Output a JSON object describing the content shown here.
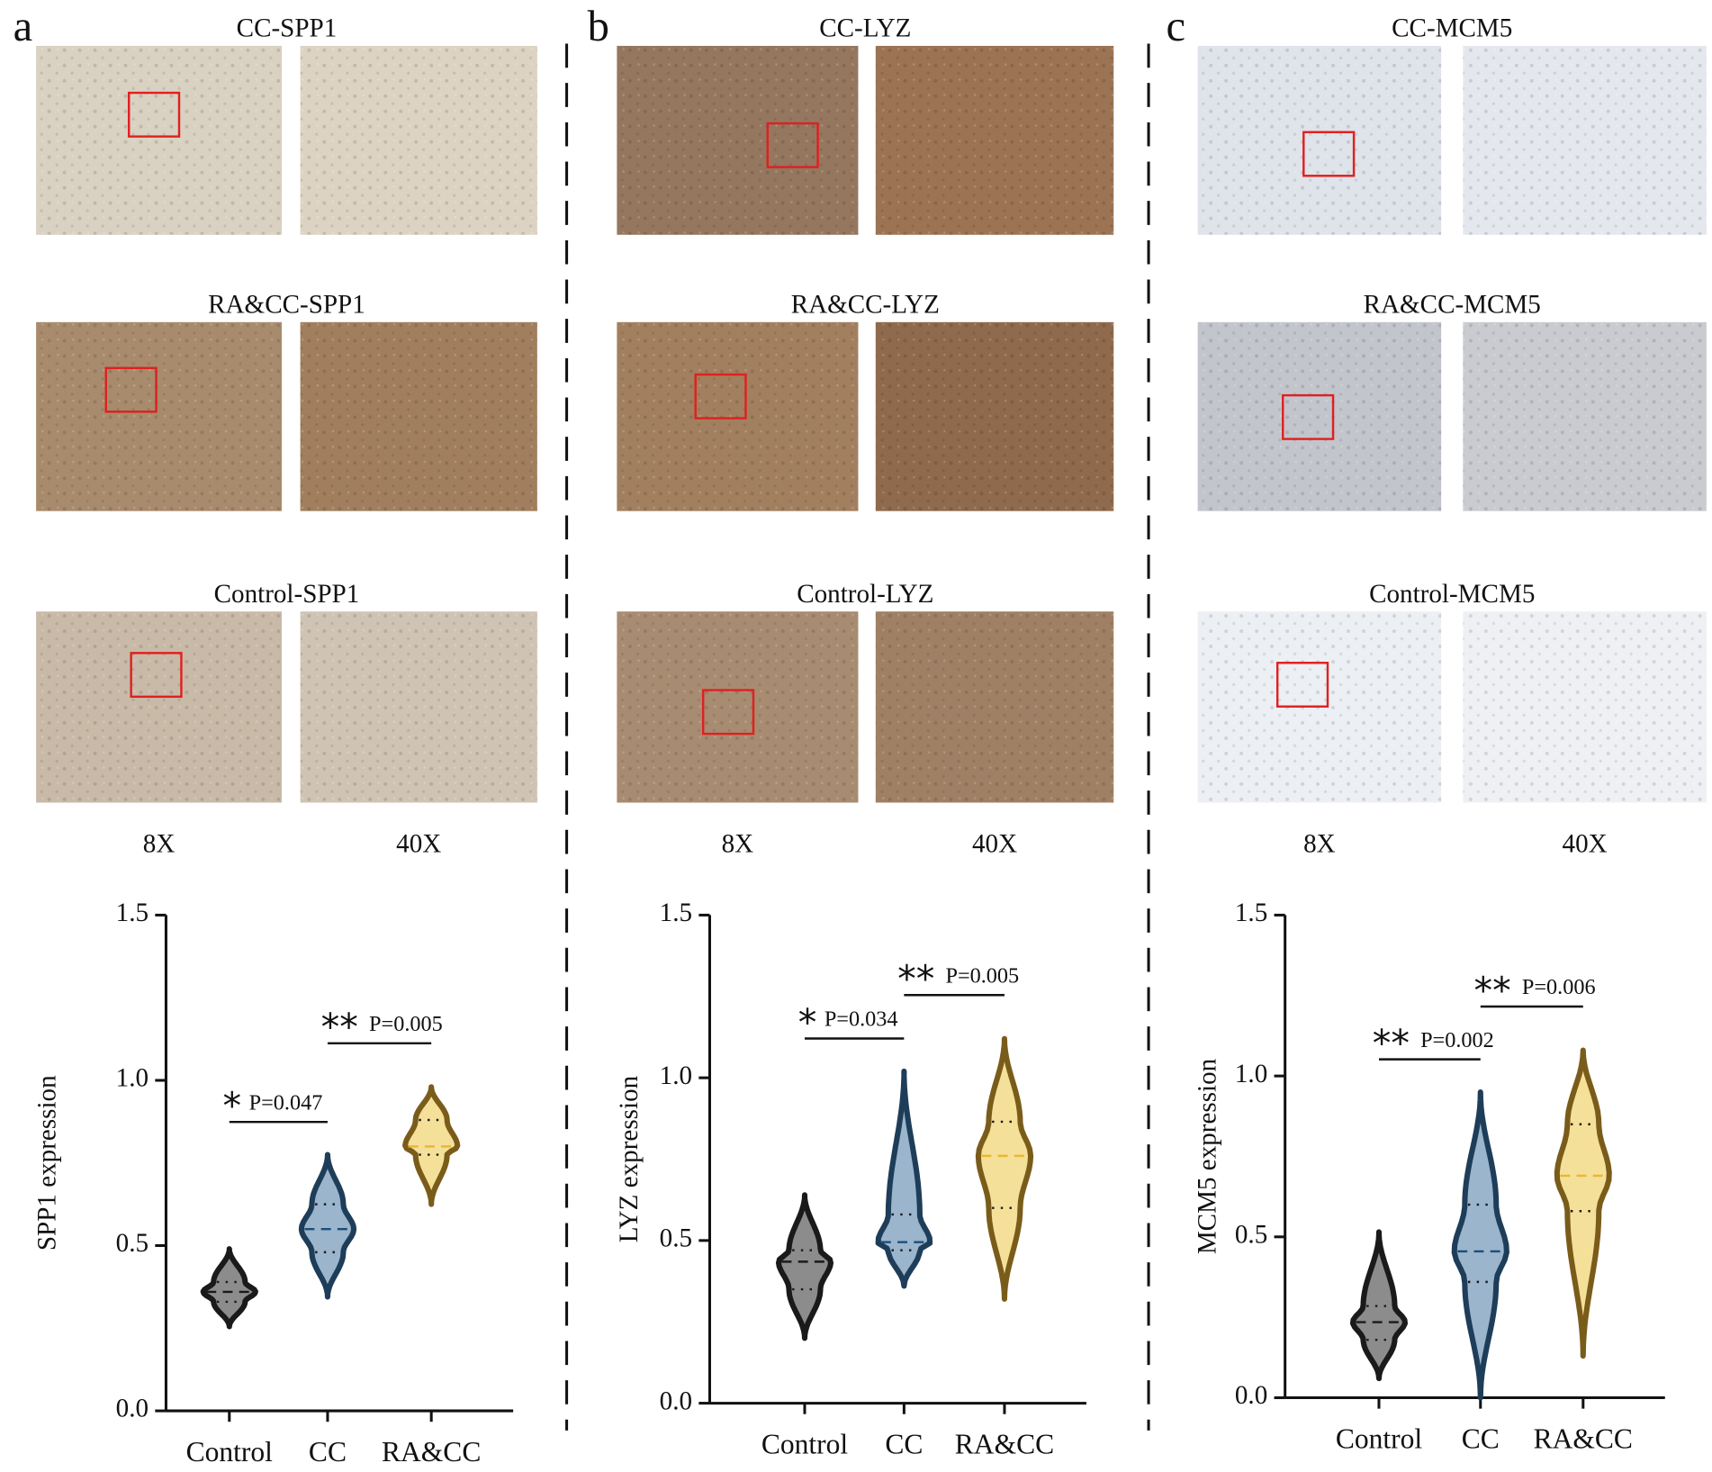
{
  "panels": [
    {
      "letter": "a",
      "image_rows": [
        "CC-SPP1",
        "RA&CC-SPP1",
        "Control-SPP1"
      ],
      "magnifications": [
        "8X",
        "40X"
      ]
    },
    {
      "letter": "b",
      "image_rows": [
        "CC-LYZ",
        "RA&CC-LYZ",
        "Control-LYZ"
      ],
      "magnifications": [
        "8X",
        "40X"
      ]
    },
    {
      "letter": "c",
      "image_rows": [
        "CC-MCM5",
        "RA&CC-MCM5",
        "Control-MCM5"
      ],
      "magnifications": [
        "8X",
        "40X"
      ]
    }
  ],
  "chart_data": [
    {
      "type": "violin",
      "ylabel": "SPP1 expression",
      "categories": [
        "Control",
        "CC",
        "RA&CC"
      ],
      "ylim": [
        0,
        1.5
      ],
      "yticks": [
        {
          "value": 0,
          "label": "0.0"
        },
        {
          "value": 0.5,
          "label": "0.5"
        },
        {
          "value": 1,
          "label": "1.0"
        },
        {
          "value": 1.5,
          "label": "1.5"
        }
      ],
      "violins": [
        {
          "color": "#8c8c8c",
          "stroke": "#1a1a1a",
          "line_color": "#1a1a1a",
          "min": 0.255,
          "q1": 0.33,
          "median": 0.36,
          "q3": 0.39,
          "max": 0.49
        },
        {
          "color": "#9ab5cc",
          "stroke": "#1e3d59",
          "line_color": "#1e4d7a",
          "min": 0.345,
          "q1": 0.48,
          "median": 0.55,
          "q3": 0.625,
          "max": 0.775
        },
        {
          "color": "#f5e09a",
          "stroke": "#7a5c1a",
          "line_color": "#e8b830",
          "min": 0.625,
          "q1": 0.775,
          "median": 0.8,
          "q3": 0.88,
          "max": 0.98
        }
      ],
      "comparisons": [
        {
          "stars": "*",
          "label": "P=0.047"
        },
        {
          "stars": "**",
          "label": "P=0.005"
        }
      ]
    },
    {
      "type": "violin",
      "ylabel": "LYZ expression",
      "categories": [
        "Control",
        "CC",
        "RA&CC"
      ],
      "ylim": [
        0,
        1.5
      ],
      "yticks": [
        {
          "value": 0,
          "label": "0.0"
        },
        {
          "value": 0.5,
          "label": "0.5"
        },
        {
          "value": 1,
          "label": "1.0"
        },
        {
          "value": 1.5,
          "label": "1.5"
        }
      ],
      "violins": [
        {
          "color": "#8c8c8c",
          "stroke": "#1a1a1a",
          "line_color": "#1a1a1a",
          "min": 0.2,
          "q1": 0.35,
          "median": 0.435,
          "q3": 0.47,
          "max": 0.64
        },
        {
          "color": "#9ab5cc",
          "stroke": "#1e3d59",
          "line_color": "#1e4d7a",
          "min": 0.36,
          "q1": 0.47,
          "median": 0.495,
          "q3": 0.58,
          "max": 1.02
        },
        {
          "color": "#f5e09a",
          "stroke": "#7a5c1a",
          "line_color": "#e8b830",
          "min": 0.32,
          "q1": 0.6,
          "median": 0.76,
          "q3": 0.865,
          "max": 1.12
        }
      ],
      "comparisons": [
        {
          "stars": "*",
          "label": "P=0.034"
        },
        {
          "stars": "**",
          "label": "P=0.005"
        }
      ]
    },
    {
      "type": "violin",
      "ylabel": "MCM5 expression",
      "categories": [
        "Control",
        "CC",
        "RA&CC"
      ],
      "ylim": [
        0,
        1.5
      ],
      "yticks": [
        {
          "value": 0,
          "label": "0.0"
        },
        {
          "value": 0.5,
          "label": "0.5"
        },
        {
          "value": 1,
          "label": "1.0"
        },
        {
          "value": 1.5,
          "label": "1.5"
        }
      ],
      "violins": [
        {
          "color": "#8c8c8c",
          "stroke": "#1a1a1a",
          "line_color": "#1a1a1a",
          "min": 0.06,
          "q1": 0.18,
          "median": 0.235,
          "q3": 0.285,
          "max": 0.515
        },
        {
          "color": "#9ab5cc",
          "stroke": "#1e3d59",
          "line_color": "#1e4d7a",
          "min": 0.0,
          "q1": 0.36,
          "median": 0.455,
          "q3": 0.6,
          "max": 0.95
        },
        {
          "color": "#f5e09a",
          "stroke": "#7a5c1a",
          "line_color": "#e8b830",
          "min": 0.13,
          "q1": 0.58,
          "median": 0.69,
          "q3": 0.85,
          "max": 1.08
        }
      ],
      "comparisons": [
        {
          "stars": "**",
          "label": "P=0.002"
        },
        {
          "stars": "**",
          "label": "P=0.006"
        }
      ]
    }
  ]
}
